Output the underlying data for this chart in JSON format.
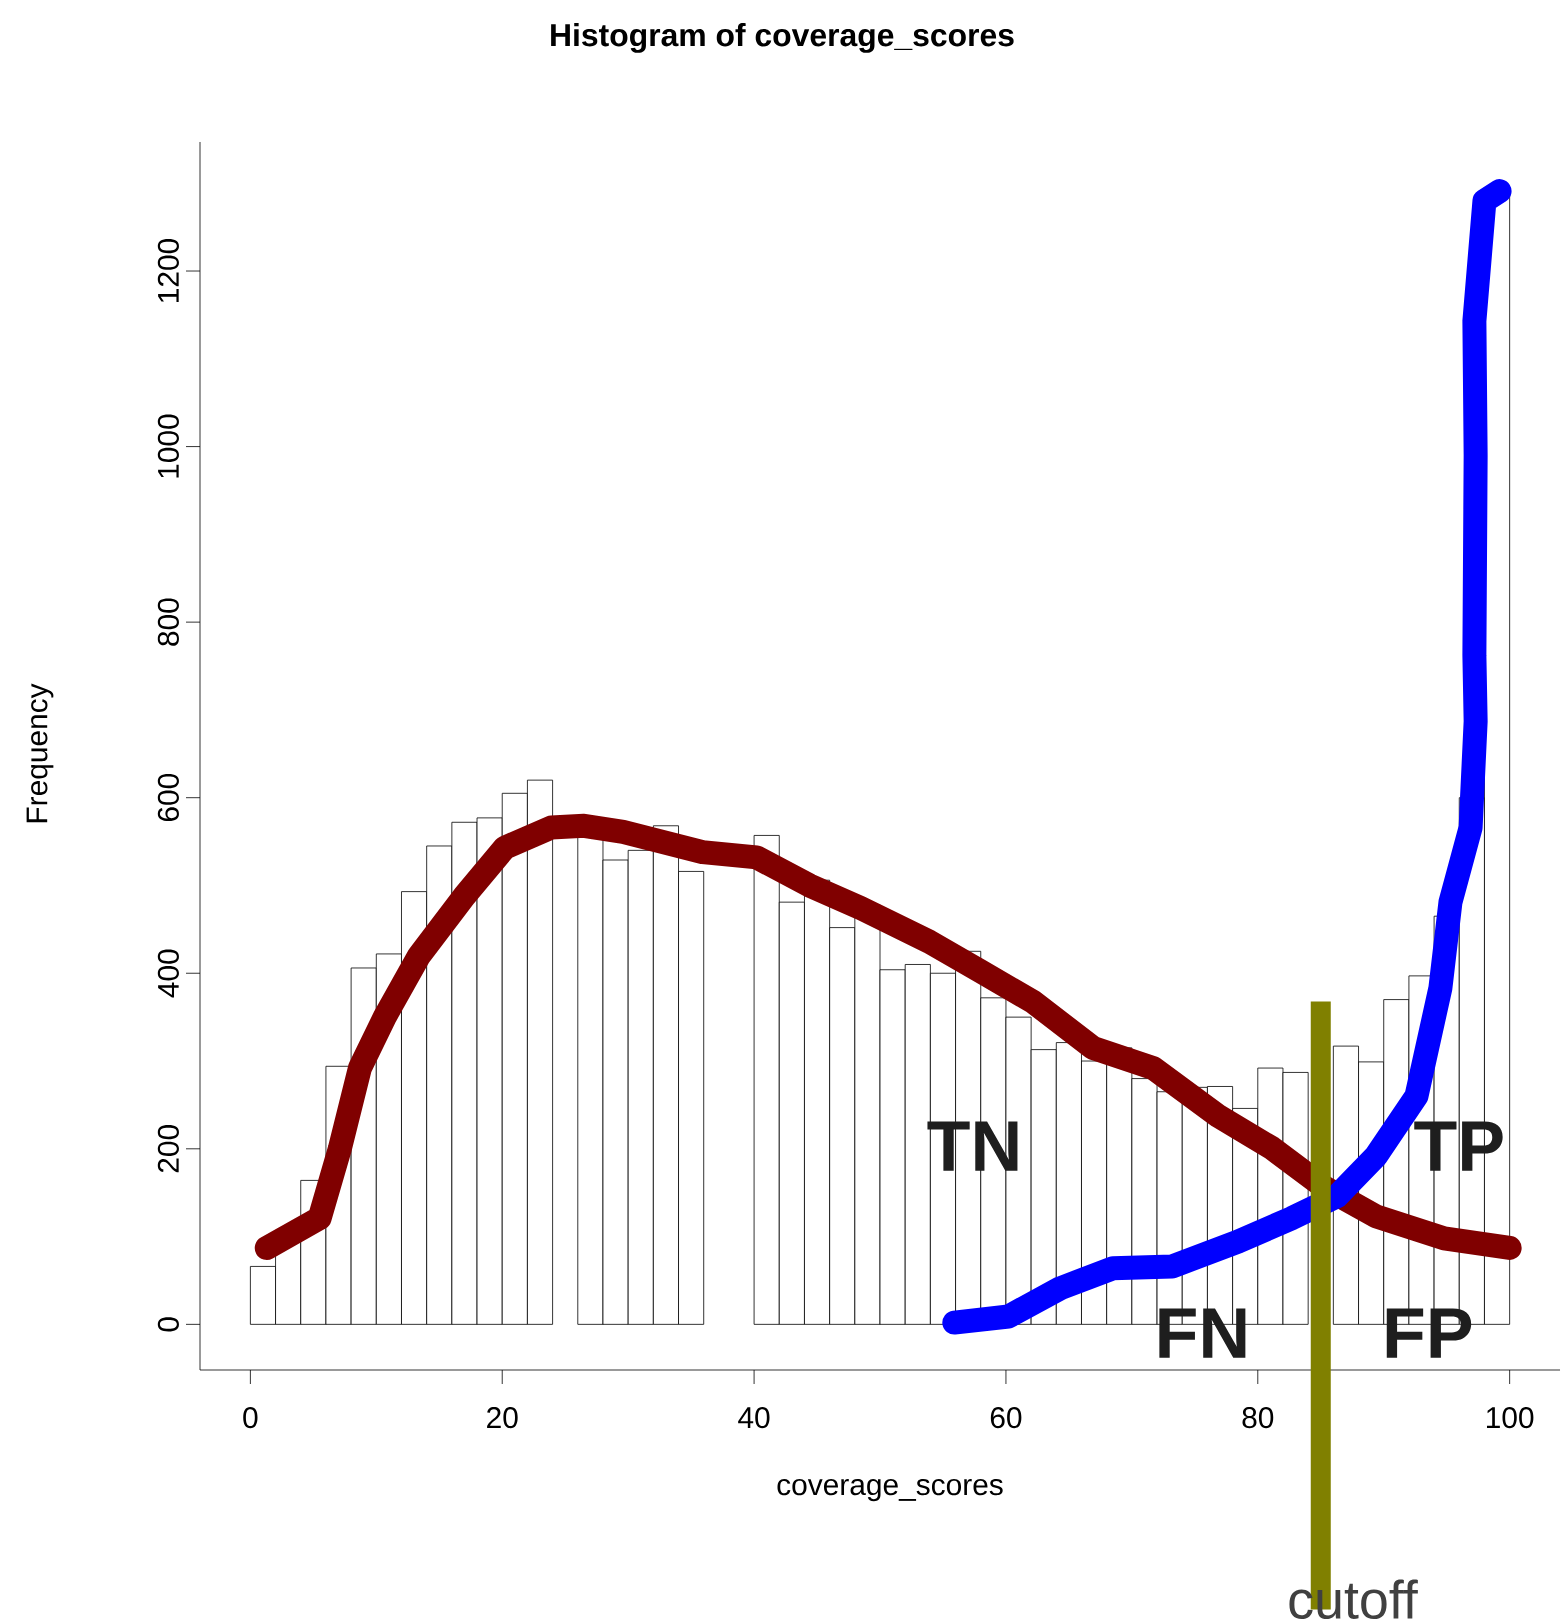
{
  "chart_data": {
    "type": "histogram",
    "title": "Histogram of coverage_scores",
    "xlabel": "coverage_scores",
    "ylabel": "Frequency",
    "bins": [
      0,
      2,
      4,
      6,
      8,
      10,
      12,
      14,
      16,
      18,
      20,
      22,
      24,
      26,
      28,
      30,
      32,
      34,
      36,
      38,
      40,
      42,
      44,
      46,
      48,
      50,
      52,
      54,
      56,
      58,
      60,
      62,
      64,
      66,
      68,
      70,
      72,
      74,
      76,
      78,
      80,
      82,
      84,
      86,
      88,
      90,
      92,
      94,
      96,
      98,
      100
    ],
    "values": [
      66,
      100,
      164,
      294,
      406,
      422,
      493,
      545,
      572,
      577,
      605,
      620,
      null,
      560,
      529,
      540,
      568,
      516,
      null,
      null,
      557,
      481,
      506,
      452,
      478,
      404,
      410,
      400,
      425,
      372,
      350,
      313,
      321,
      300,
      315,
      280,
      265,
      270,
      271,
      246,
      292,
      287,
      null,
      317,
      299,
      370,
      397,
      465,
      600,
      1295
    ],
    "color": "#000000",
    "series": [
      {
        "type": "line",
        "color": "#800000",
        "x": [
          1.3,
          5.5,
          7.1,
          8.7,
          10.7,
          13.4,
          17,
          20.2,
          23.9,
          26.5,
          29.6,
          35.9,
          40.2,
          44.4,
          48.5,
          53.9,
          58,
          62.2,
          66.9,
          71.7,
          76.9,
          81.1,
          85.4,
          89.4,
          94.8,
          100
        ],
        "values": [
          87,
          121,
          200,
          292,
          351,
          420,
          488,
          543,
          566,
          568,
          561,
          538,
          532,
          500,
          474,
          436,
          402,
          367,
          315,
          292,
          237,
          201,
          155,
          123,
          98,
          87
        ]
      },
      {
        "type": "line",
        "color": "#0000ff",
        "x": [
          55.9,
          60.2,
          64.3,
          68.5,
          73.2,
          78.4,
          82.7,
          86.3,
          89.4,
          92.6,
          94.5,
          95.3,
          96.9,
          97.3,
          97.2,
          97.3,
          97.2,
          98,
          99.2
        ],
        "values": [
          2,
          9,
          41,
          64,
          66,
          94,
          121,
          146,
          192,
          260,
          383,
          481,
          566,
          687,
          762,
          990,
          1143,
          1280,
          1291
        ]
      }
    ],
    "ref_lines": [
      {
        "axis": "x",
        "value": 85,
        "label": "cutoff",
        "color": "#808000"
      }
    ],
    "annotations": [
      {
        "text": "TN",
        "x": 57.5,
        "y": 203
      },
      {
        "text": "FN",
        "x": 75.6,
        "y": -10
      },
      {
        "text": "TP",
        "x": 96,
        "y": 203
      },
      {
        "text": "FP",
        "x": 93.5,
        "y": -10
      }
    ],
    "xlim": [
      -4,
      104
    ],
    "ylim": [
      -52,
      1347
    ],
    "xticks": [
      0,
      20,
      40,
      60,
      80,
      100
    ],
    "yticks": [
      0,
      200,
      400,
      600,
      800,
      1000,
      1200
    ],
    "grid": false
  }
}
